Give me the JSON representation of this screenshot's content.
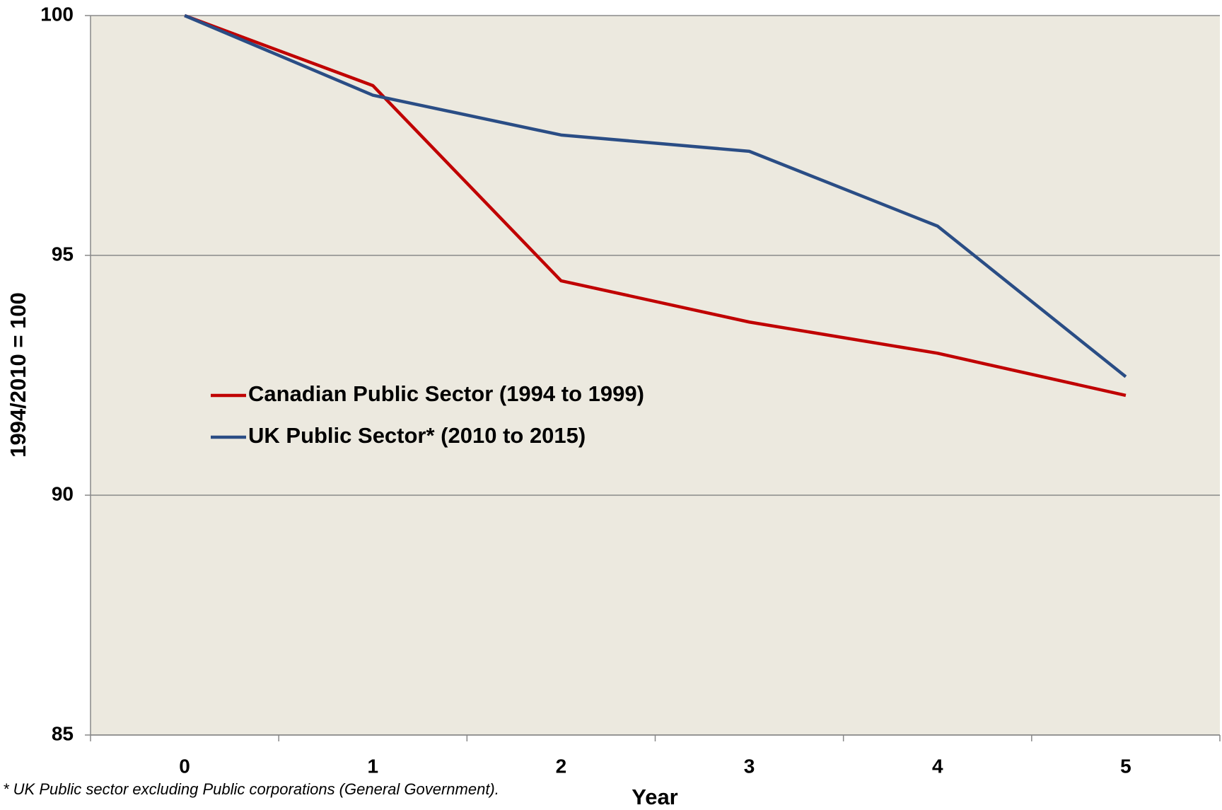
{
  "chart_data": {
    "type": "line",
    "x_label": "Year",
    "y_label": "1994/2010 = 100",
    "note": "* UK Public sector excluding Public corporations (General Government).",
    "categories": [
      "0",
      "1",
      "2",
      "3",
      "4",
      "5"
    ],
    "series": [
      {
        "name": "Canadian Public Sector (1994 to 1999)",
        "color": "#c00000",
        "values": [
          100,
          98.54,
          94.47,
          93.61,
          92.96,
          92.08
        ]
      },
      {
        "name": "UK Public Sector* (2010 to 2015)",
        "color": "#2a4d85",
        "values": [
          100,
          98.34,
          97.51,
          97.17,
          95.61,
          92.47
        ]
      }
    ],
    "ylim": [
      85,
      100
    ],
    "yticks": [
      85,
      90,
      95,
      100
    ],
    "grid": true
  }
}
